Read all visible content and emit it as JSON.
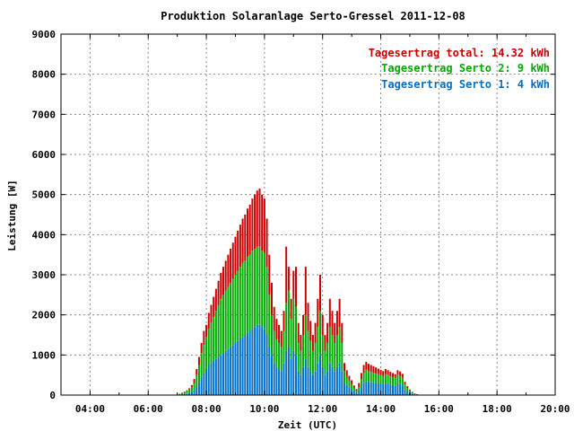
{
  "chart_data": {
    "type": "bar",
    "stacked": true,
    "title": "Produktion Solaranlage Serto-Gressel 2011-12-08",
    "xlabel": "Zeit (UTC)",
    "ylabel": "Leistung [W]",
    "ylim": [
      0,
      9000
    ],
    "xlim": [
      3.0,
      20.0
    ],
    "grid": true,
    "legend_position": "top-right",
    "y_ticks": [
      "0",
      "1000",
      "2000",
      "3000",
      "4000",
      "5000",
      "6000",
      "7000",
      "8000",
      "9000"
    ],
    "x_ticks": [
      "04:00",
      "06:00",
      "08:00",
      "10:00",
      "12:00",
      "14:00",
      "16:00",
      "18:00",
      "20:00"
    ],
    "legend": [
      {
        "label": "Tagesertrag total: 14.32 kWh",
        "color": "#cc0000"
      },
      {
        "label": "Tagesertrag Serto 2: 9 kWh",
        "color": "#00aa00"
      },
      {
        "label": "Tagesertrag Serto 1: 4 kWh",
        "color": "#0070c8"
      }
    ],
    "x": [
      "07:05",
      "07:10",
      "07:15",
      "07:20",
      "07:25",
      "07:30",
      "07:35",
      "07:40",
      "07:45",
      "07:50",
      "07:55",
      "08:00",
      "08:05",
      "08:10",
      "08:15",
      "08:20",
      "08:25",
      "08:30",
      "08:35",
      "08:40",
      "08:45",
      "08:50",
      "08:55",
      "09:00",
      "09:05",
      "09:10",
      "09:15",
      "09:20",
      "09:25",
      "09:30",
      "09:35",
      "09:40",
      "09:45",
      "09:50",
      "09:55",
      "10:00",
      "10:05",
      "10:10",
      "10:15",
      "10:20",
      "10:25",
      "10:30",
      "10:35",
      "10:40",
      "10:45",
      "10:50",
      "10:55",
      "11:00",
      "11:05",
      "11:10",
      "11:15",
      "11:20",
      "11:25",
      "11:30",
      "11:35",
      "11:40",
      "11:45",
      "11:50",
      "11:55",
      "12:00",
      "12:05",
      "12:10",
      "12:15",
      "12:20",
      "12:25",
      "12:30",
      "12:35",
      "12:40",
      "12:45",
      "12:50",
      "12:55",
      "13:00",
      "13:05",
      "13:10",
      "13:15",
      "13:20",
      "13:25",
      "13:30",
      "13:35",
      "13:40",
      "13:45",
      "13:50",
      "13:55",
      "14:00",
      "14:05",
      "14:10",
      "14:15",
      "14:20",
      "14:25",
      "14:30",
      "14:35",
      "14:40",
      "14:45",
      "14:50",
      "14:55",
      "15:00",
      "15:05",
      "15:10",
      "15:15",
      "15:20",
      "15:25",
      "15:30",
      "15:35",
      "15:40"
    ],
    "series": [
      {
        "name": "Serto 1",
        "color": "#0070c8",
        "values": [
          10,
          20,
          30,
          40,
          60,
          80,
          120,
          200,
          300,
          450,
          550,
          650,
          750,
          800,
          850,
          900,
          950,
          1000,
          1050,
          1100,
          1150,
          1200,
          1250,
          1300,
          1350,
          1400,
          1450,
          1500,
          1550,
          1600,
          1650,
          1700,
          1750,
          1750,
          1700,
          1650,
          1500,
          1200,
          1000,
          800,
          700,
          650,
          600,
          800,
          1100,
          1200,
          900,
          1100,
          1000,
          600,
          500,
          700,
          900,
          700,
          600,
          500,
          600,
          800,
          1000,
          700,
          500,
          600,
          800,
          700,
          600,
          700,
          800,
          600,
          300,
          250,
          200,
          150,
          100,
          60,
          100,
          200,
          300,
          350,
          330,
          320,
          310,
          300,
          290,
          280,
          270,
          290,
          280,
          260,
          250,
          240,
          280,
          270,
          240,
          150,
          100,
          70,
          40,
          20,
          10,
          5,
          3,
          2,
          1,
          1
        ]
      },
      {
        "name": "Serto 2",
        "color": "#00aa00",
        "values": [
          15,
          30,
          40,
          60,
          80,
          120,
          180,
          300,
          450,
          600,
          700,
          800,
          900,
          1000,
          1100,
          1200,
          1300,
          1400,
          1450,
          1500,
          1550,
          1600,
          1650,
          1700,
          1750,
          1800,
          1850,
          1850,
          1900,
          1900,
          1950,
          1950,
          1950,
          1950,
          1900,
          1900,
          1700,
          1300,
          1000,
          800,
          700,
          650,
          600,
          800,
          1200,
          1400,
          1000,
          1300,
          1200,
          700,
          600,
          800,
          1100,
          900,
          750,
          600,
          700,
          900,
          1100,
          800,
          600,
          700,
          900,
          800,
          700,
          800,
          900,
          700,
          300,
          220,
          160,
          120,
          80,
          50,
          100,
          200,
          250,
          280,
          270,
          260,
          250,
          240,
          230,
          220,
          210,
          230,
          220,
          210,
          200,
          190,
          220,
          210,
          190,
          120,
          80,
          50,
          30,
          15,
          8,
          4,
          2,
          1,
          1,
          1
        ]
      },
      {
        "name": "Total",
        "color": "#cc0000",
        "values": [
          5,
          10,
          15,
          20,
          30,
          50,
          100,
          150,
          200,
          250,
          350,
          300,
          400,
          450,
          500,
          550,
          600,
          650,
          700,
          750,
          800,
          850,
          900,
          950,
          1000,
          1050,
          1100,
          1150,
          1200,
          1250,
          1300,
          1350,
          1400,
          1450,
          1400,
          1350,
          1200,
          1000,
          800,
          600,
          500,
          450,
          400,
          500,
          1400,
          600,
          500,
          700,
          1000,
          500,
          400,
          500,
          1200,
          700,
          500,
          400,
          500,
          700,
          900,
          500,
          400,
          500,
          700,
          600,
          500,
          600,
          700,
          500,
          200,
          150,
          120,
          100,
          60,
          40,
          100,
          150,
          200,
          200,
          180,
          170,
          160,
          150,
          140,
          130,
          120,
          130,
          120,
          110,
          100,
          90,
          120,
          110,
          100,
          60,
          40,
          20,
          10,
          5,
          3,
          2,
          1,
          0,
          0,
          0
        ]
      }
    ]
  }
}
